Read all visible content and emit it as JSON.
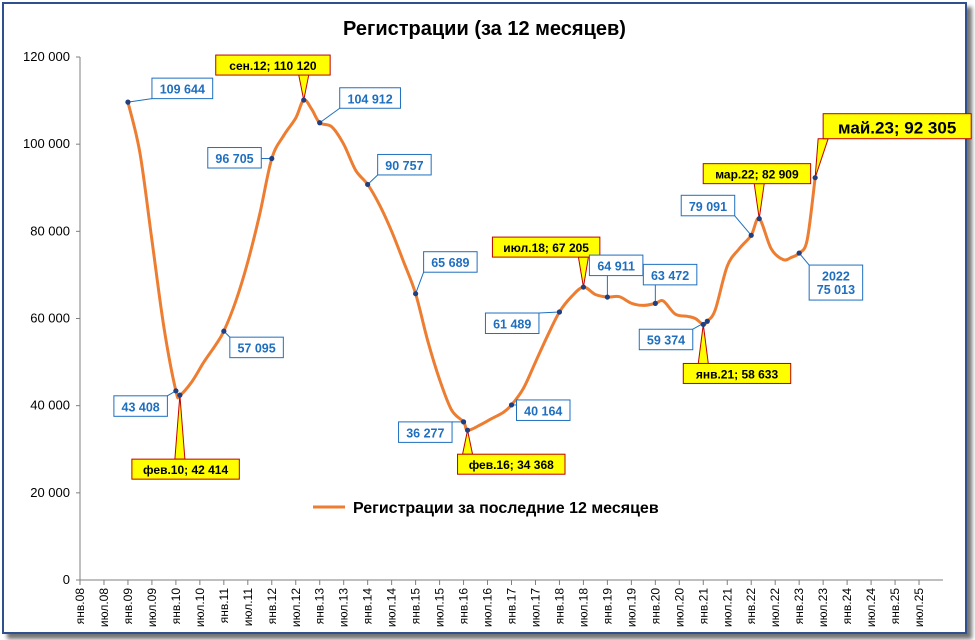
{
  "chart_data": {
    "type": "line",
    "title": "Регистрации (за 12 месяцев)",
    "xlabel": "",
    "ylabel": "",
    "ylim": [
      0,
      120000
    ],
    "yticks": [
      "0",
      "20 000",
      "40 000",
      "60 000",
      "80 000",
      "100 000",
      "120 000"
    ],
    "xticks": [
      "янв.08",
      "июл.08",
      "янв.09",
      "июл.09",
      "янв.10",
      "июл.10",
      "янв.11",
      "июл.11",
      "янв.12",
      "июл.12",
      "янв.13",
      "июл.13",
      "янв.14",
      "июл.14",
      "янв.15",
      "июл.15",
      "янв.16",
      "июл.16",
      "янв.17",
      "июл.17",
      "янв.18",
      "июл.18",
      "янв.19",
      "июл.19",
      "янв.20",
      "июл.20",
      "янв.21",
      "июл.21",
      "янв.22",
      "июл.22",
      "янв.23",
      "июл.23",
      "янв.24",
      "июл.24",
      "янв.25",
      "июл.25"
    ],
    "grid": false,
    "legend": "center",
    "series": [
      {
        "name": "Регистрации за последние 12 месяцев",
        "color": "#ed7d31",
        "points": [
          [
            "2009-01",
            109644
          ],
          [
            "2009-04",
            98000
          ],
          [
            "2009-07",
            78000
          ],
          [
            "2009-10",
            58000
          ],
          [
            "2010-01",
            43408
          ],
          [
            "2010-02",
            42414
          ],
          [
            "2010-05",
            45500
          ],
          [
            "2010-08",
            50000
          ],
          [
            "2010-11",
            54000
          ],
          [
            "2011-01",
            57095
          ],
          [
            "2011-04",
            64000
          ],
          [
            "2011-07",
            73000
          ],
          [
            "2011-10",
            84000
          ],
          [
            "2012-01",
            96705
          ],
          [
            "2012-04",
            102000
          ],
          [
            "2012-07",
            106000
          ],
          [
            "2012-09",
            110120
          ],
          [
            "2012-11",
            108000
          ],
          [
            "2013-01",
            104912
          ],
          [
            "2013-04",
            104000
          ],
          [
            "2013-07",
            100000
          ],
          [
            "2013-10",
            94000
          ],
          [
            "2014-01",
            90757
          ],
          [
            "2014-04",
            86000
          ],
          [
            "2014-07",
            80000
          ],
          [
            "2014-10",
            73000
          ],
          [
            "2015-01",
            65689
          ],
          [
            "2015-04",
            55000
          ],
          [
            "2015-07",
            46000
          ],
          [
            "2015-10",
            39000
          ],
          [
            "2016-01",
            36277
          ],
          [
            "2016-02",
            34368
          ],
          [
            "2016-05",
            35500
          ],
          [
            "2016-08",
            37000
          ],
          [
            "2016-11",
            38500
          ],
          [
            "2017-01",
            40164
          ],
          [
            "2017-04",
            44000
          ],
          [
            "2017-07",
            50000
          ],
          [
            "2017-10",
            56000
          ],
          [
            "2018-01",
            61489
          ],
          [
            "2018-04",
            65000
          ],
          [
            "2018-07",
            67205
          ],
          [
            "2018-10",
            65500
          ],
          [
            "2019-01",
            64911
          ],
          [
            "2019-04",
            65000
          ],
          [
            "2019-07",
            63500
          ],
          [
            "2019-10",
            63000
          ],
          [
            "2020-01",
            63472
          ],
          [
            "2020-03",
            64000
          ],
          [
            "2020-06",
            61000
          ],
          [
            "2020-09",
            60500
          ],
          [
            "2020-11",
            60000
          ],
          [
            "2021-01",
            58633
          ],
          [
            "2021-02",
            59374
          ],
          [
            "2021-04",
            62000
          ],
          [
            "2021-07",
            72000
          ],
          [
            "2021-10",
            76000
          ],
          [
            "2022-01",
            79091
          ],
          [
            "2022-03",
            82909
          ],
          [
            "2022-06",
            76000
          ],
          [
            "2022-09",
            73500
          ],
          [
            "2022-11",
            74000
          ],
          [
            "2023-01",
            75013
          ],
          [
            "2023-03",
            78000
          ],
          [
            "2023-05",
            92305
          ]
        ]
      }
    ],
    "annotations": [
      {
        "at": "2009-01",
        "value": 109644,
        "text": "109 644",
        "style": "blue"
      },
      {
        "at": "2010-01",
        "value": 43408,
        "text": "43 408",
        "style": "blue"
      },
      {
        "at": "2010-02",
        "value": 42414,
        "text": "фев.10; 42 414",
        "style": "callout"
      },
      {
        "at": "2011-01",
        "value": 57095,
        "text": "57 095",
        "style": "blue"
      },
      {
        "at": "2012-01",
        "value": 96705,
        "text": "96 705",
        "style": "blue"
      },
      {
        "at": "2012-09",
        "value": 110120,
        "text": "сен.12; 110 120",
        "style": "callout"
      },
      {
        "at": "2013-01",
        "value": 104912,
        "text": "104 912",
        "style": "blue"
      },
      {
        "at": "2014-01",
        "value": 90757,
        "text": "90 757",
        "style": "blue"
      },
      {
        "at": "2015-01",
        "value": 65689,
        "text": "65 689",
        "style": "blue"
      },
      {
        "at": "2016-01",
        "value": 36277,
        "text": "36 277",
        "style": "blue"
      },
      {
        "at": "2016-02",
        "value": 34368,
        "text": "фев.16; 34 368",
        "style": "callout"
      },
      {
        "at": "2017-01",
        "value": 40164,
        "text": "40 164",
        "style": "blue"
      },
      {
        "at": "2018-01",
        "value": 61489,
        "text": "61 489",
        "style": "blue"
      },
      {
        "at": "2018-07",
        "value": 67205,
        "text": "июл.18; 67 205",
        "style": "callout"
      },
      {
        "at": "2019-01",
        "value": 64911,
        "text": "64 911",
        "style": "blue"
      },
      {
        "at": "2020-01",
        "value": 63472,
        "text": "63 472",
        "style": "blue"
      },
      {
        "at": "2021-02",
        "value": 59374,
        "text": "59 374",
        "style": "blue"
      },
      {
        "at": "2021-01",
        "value": 58633,
        "text": "янв.21; 58 633",
        "style": "callout"
      },
      {
        "at": "2022-01",
        "value": 79091,
        "text": "79 091",
        "style": "blue"
      },
      {
        "at": "2022-03",
        "value": 82909,
        "text": "мар.22; 82 909",
        "style": "callout"
      },
      {
        "at": "2023-01",
        "value": 75013,
        "text": [
          "2022",
          "75 013"
        ],
        "style": "blue"
      },
      {
        "at": "2023-05",
        "value": 92305,
        "text": "май.23; 92 305",
        "style": "callout-big"
      }
    ]
  }
}
